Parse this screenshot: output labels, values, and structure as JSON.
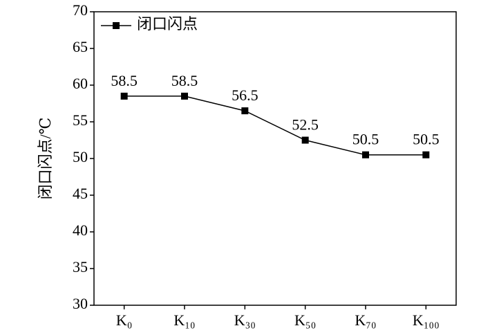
{
  "chart_data": {
    "type": "line",
    "y_label": "闭口闪点/℃",
    "categories": [
      "K₀",
      "K₁₀",
      "K₃₀",
      "K₅₀",
      "K₇₀",
      "K₁₀₀"
    ],
    "series": [
      {
        "name": "闭口闪点",
        "color": "#000000",
        "values": [
          58.5,
          58.5,
          56.5,
          52.5,
          50.5,
          50.5
        ]
      }
    ],
    "ylim": [
      30,
      70
    ],
    "yticks": [
      30,
      35,
      40,
      45,
      50,
      55,
      60,
      65,
      70
    ],
    "legend": "top-left",
    "grid": false
  }
}
